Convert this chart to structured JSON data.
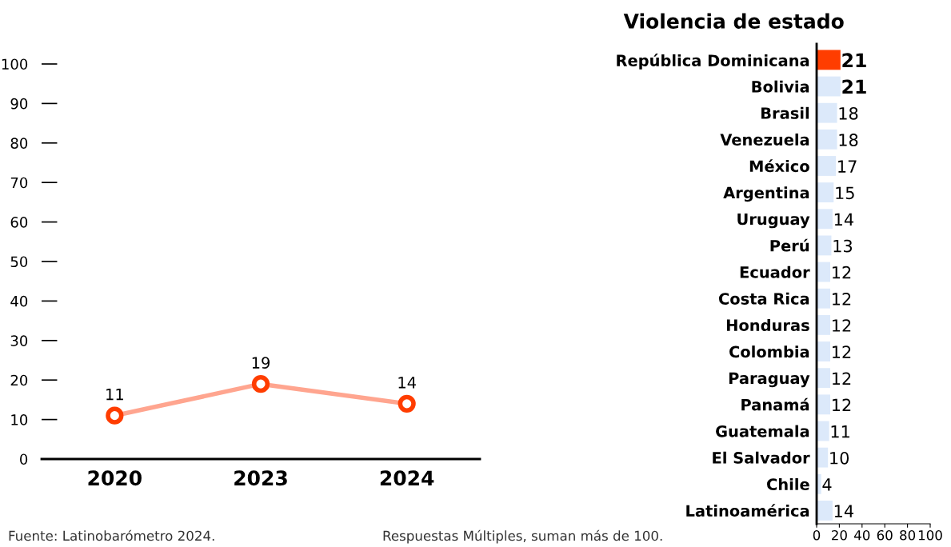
{
  "chart_data": [
    {
      "type": "line",
      "categories": [
        "2020",
        "2023",
        "2024"
      ],
      "series": [
        {
          "color": "#ffa58f",
          "values": [
            11,
            19,
            14
          ]
        }
      ],
      "ylim": [
        0,
        100
      ],
      "yticks": [
        0,
        10,
        20,
        30,
        40,
        50,
        60,
        70,
        80,
        90,
        100
      ],
      "marker": "circle",
      "data_labels": true,
      "grid": false,
      "annotations": [
        "Fuente: Latinobarómetro 2024.",
        "Respuestas Múltiples, suman más de 100."
      ]
    },
    {
      "type": "bar",
      "orientation": "horizontal",
      "title": "Violencia de estado",
      "categories": [
        "República Dominicana",
        "Bolivia",
        "Brasil",
        "Venezuela",
        "México",
        "Argentina",
        "Uruguay",
        "Perú",
        "Ecuador",
        "Costa Rica",
        "Honduras",
        "Colombia",
        "Paraguay",
        "Panamá",
        "Guatemala",
        "El Salvador",
        "Chile",
        "Latinoamérica"
      ],
      "values": [
        21,
        21,
        18,
        18,
        17,
        15,
        14,
        13,
        12,
        12,
        12,
        12,
        12,
        12,
        11,
        10,
        4,
        14
      ],
      "colors": [
        "#ff3d00",
        "#dce9fa",
        "#dce9fa",
        "#dce9fa",
        "#dce9fa",
        "#dce9fa",
        "#dce9fa",
        "#dce9fa",
        "#dce9fa",
        "#dce9fa",
        "#dce9fa",
        "#dce9fa",
        "#dce9fa",
        "#dce9fa",
        "#dce9fa",
        "#dce9fa",
        "#dce9fa",
        "#dce9fa"
      ],
      "xlim": [
        0,
        100
      ],
      "xticks": [
        0,
        20,
        40,
        60,
        80,
        100
      ],
      "data_labels": true,
      "grid": false
    }
  ]
}
